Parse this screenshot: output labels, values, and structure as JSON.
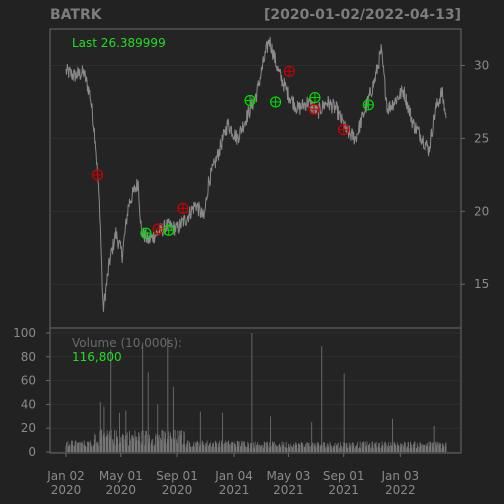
{
  "chart_data": [
    {
      "type": "line",
      "title": "BATRK",
      "date_range": "[2020-01-02/2022-04-13]",
      "last_label": "Last 26.389999",
      "ylim": [
        12,
        32.5
      ],
      "y_ticks": [
        15,
        20,
        25,
        30
      ],
      "grid": true,
      "price_path": [
        [
          "2020-01-02",
          29.6
        ],
        [
          "2020-01-20",
          29.3
        ],
        [
          "2020-02-10",
          29.5
        ],
        [
          "2020-02-24",
          28.0
        ],
        [
          "2020-03-06",
          25.0
        ],
        [
          "2020-03-16",
          20.0
        ],
        [
          "2020-03-23",
          13.2
        ],
        [
          "2020-04-06",
          16.5
        ],
        [
          "2020-04-20",
          18.5
        ],
        [
          "2020-05-04",
          17.0
        ],
        [
          "2020-05-18",
          20.5
        ],
        [
          "2020-06-08",
          22.0
        ],
        [
          "2020-06-15",
          18.6
        ],
        [
          "2020-07-01",
          18.0
        ],
        [
          "2020-07-20",
          18.5
        ],
        [
          "2020-08-10",
          19.0
        ],
        [
          "2020-09-01",
          18.8
        ],
        [
          "2020-09-21",
          19.5
        ],
        [
          "2020-10-12",
          20.5
        ],
        [
          "2020-10-30",
          19.5
        ],
        [
          "2020-11-09",
          22.0
        ],
        [
          "2020-12-01",
          24.0
        ],
        [
          "2020-12-21",
          26.0
        ],
        [
          "2021-01-11",
          25.0
        ],
        [
          "2021-02-01",
          26.5
        ],
        [
          "2021-02-22",
          28.0
        ],
        [
          "2021-03-08",
          30.0
        ],
        [
          "2021-03-22",
          31.8
        ],
        [
          "2021-04-12",
          29.5
        ],
        [
          "2021-05-03",
          28.0
        ],
        [
          "2021-05-24",
          27.0
        ],
        [
          "2021-06-14",
          27.5
        ],
        [
          "2021-07-06",
          26.8
        ],
        [
          "2021-07-26",
          27.5
        ],
        [
          "2021-08-16",
          27.0
        ],
        [
          "2021-09-07",
          25.5
        ],
        [
          "2021-09-27",
          25.0
        ],
        [
          "2021-10-18",
          27.0
        ],
        [
          "2021-11-08",
          29.0
        ],
        [
          "2021-11-22",
          31.0
        ],
        [
          "2021-12-06",
          27.0
        ],
        [
          "2021-12-20",
          27.5
        ],
        [
          "2022-01-10",
          28.3
        ],
        [
          "2022-01-31",
          26.0
        ],
        [
          "2022-02-21",
          25.0
        ],
        [
          "2022-03-07",
          24.2
        ],
        [
          "2022-03-21",
          27.0
        ],
        [
          "2022-04-04",
          28.2
        ],
        [
          "2022-04-13",
          26.39
        ]
      ],
      "buy_signals": [
        [
          "2020-06-25",
          18.5
        ],
        [
          "2020-08-14",
          18.7
        ],
        [
          "2021-02-08",
          27.6
        ],
        [
          "2021-04-05",
          27.5
        ],
        [
          "2021-06-30",
          27.8
        ],
        [
          "2021-10-25",
          27.3
        ]
      ],
      "sell_signals": [
        [
          "2020-03-11",
          22.5
        ],
        [
          "2020-07-22",
          18.8
        ],
        [
          "2020-09-14",
          20.2
        ],
        [
          "2021-05-05",
          29.6
        ],
        [
          "2021-06-28",
          27.0
        ],
        [
          "2021-09-01",
          25.6
        ]
      ],
      "line_color": "#888888",
      "buy_color": "#00dd00",
      "sell_color": "#cc0000"
    },
    {
      "type": "bar",
      "title": "Volume (10,000s):",
      "last_value_label": "116,800",
      "ylim": [
        0,
        100
      ],
      "y_ticks": [
        0,
        20,
        40,
        60,
        80,
        100
      ],
      "volume_spikes": [
        [
          "2020-03-17",
          42
        ],
        [
          "2020-03-25",
          38
        ],
        [
          "2020-04-09",
          86
        ],
        [
          "2020-04-28",
          33
        ],
        [
          "2020-05-12",
          35
        ],
        [
          "2020-06-18",
          92
        ],
        [
          "2020-06-30",
          67
        ],
        [
          "2020-07-21",
          40
        ],
        [
          "2020-08-12",
          96
        ],
        [
          "2020-08-24",
          55
        ],
        [
          "2020-10-22",
          34
        ],
        [
          "2020-12-10",
          33
        ],
        [
          "2021-02-12",
          100
        ],
        [
          "2021-03-25",
          30
        ],
        [
          "2021-06-23",
          25
        ],
        [
          "2021-07-15",
          89
        ],
        [
          "2021-09-02",
          66
        ],
        [
          "2021-12-17",
          28
        ],
        [
          "2022-03-18",
          22
        ]
      ],
      "bar_color": "#777777"
    }
  ],
  "x_axis": {
    "ticks": [
      {
        "date": "2020-01-02",
        "label": [
          "Jan 02",
          "2020"
        ]
      },
      {
        "date": "2020-05-01",
        "label": [
          "May 01",
          "2020"
        ]
      },
      {
        "date": "2020-09-01",
        "label": [
          "Sep 01",
          "2020"
        ]
      },
      {
        "date": "2021-01-04",
        "label": [
          "Jan 04",
          "2021"
        ]
      },
      {
        "date": "2021-05-03",
        "label": [
          "May 03",
          "2021"
        ]
      },
      {
        "date": "2021-09-01",
        "label": [
          "Sep 01",
          "2021"
        ]
      },
      {
        "date": "2022-01-03",
        "label": [
          "Jan 03",
          "2022"
        ]
      }
    ],
    "end_date": "2022-04-13"
  }
}
